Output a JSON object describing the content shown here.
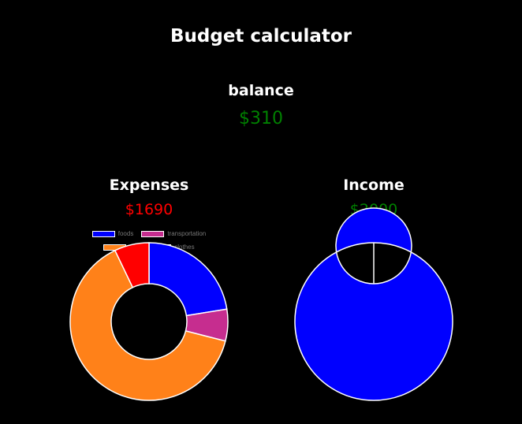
{
  "app": {
    "title": "Budget calculator"
  },
  "balance": {
    "label": "balance",
    "value": "$310",
    "color": "#008000"
  },
  "expenses": {
    "title": "Expenses",
    "total": "$1690",
    "total_color": "#ff0000"
  },
  "income": {
    "title": "Income",
    "total": "$2000",
    "total_color": "#008000"
  },
  "chart_data": [
    {
      "type": "pie",
      "variant": "doughnut",
      "categories": [
        "foods",
        "transportation",
        "rent",
        "clothes"
      ],
      "values": [
        380,
        110,
        1080,
        120
      ],
      "colors": [
        "#0000ff",
        "#c62d8f",
        "#ff8119",
        "#ff0000"
      ],
      "legend": "top"
    },
    {
      "type": "pie",
      "variant": "doughnut",
      "categories": [
        "income"
      ],
      "values": [
        2000
      ],
      "colors": [
        "#0000ff"
      ],
      "legend": "top"
    }
  ]
}
